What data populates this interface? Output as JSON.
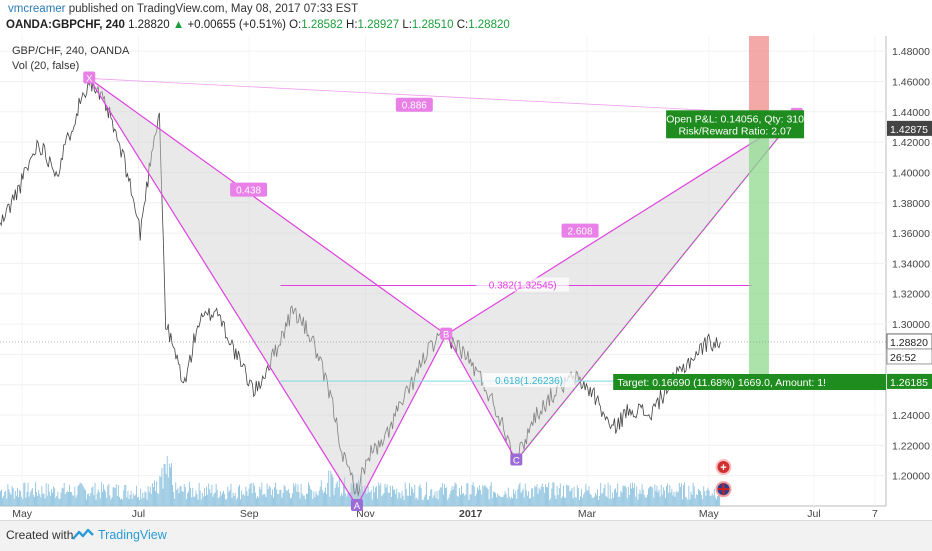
{
  "header": {
    "author": "vmcreamer",
    "published_text": "published on TradingView.com, May 08, 2017 07:33 EST",
    "symbol": "OANDA:GBPCHF, 240",
    "last": "1.28820",
    "change_arrow": "▲",
    "change": "+0.00655 (+0.51%)",
    "open_label": "O:",
    "open": "1.28582",
    "high_label": "H:",
    "high": "1.28927",
    "low_label": "L:",
    "low": "1.28510",
    "close_label": "C:",
    "close": "1.28820"
  },
  "legend": {
    "line1": "GBP/CHF, 240, OANDA",
    "line2": "Vol (20, false)"
  },
  "footer": {
    "created_with": "Created with",
    "brand": "TradingView"
  },
  "chart_data": {
    "type": "line",
    "title": "GBP/CHF, 240, OANDA",
    "subtitle": "Vol (20, false)",
    "ylim": [
      1.18,
      1.49
    ],
    "y_ticks": [
      "1.20000",
      "1.22000",
      "1.24000",
      "1.26000",
      "1.28000",
      "1.30000",
      "1.32000",
      "1.34000",
      "1.36000",
      "1.38000",
      "1.40000",
      "1.42000",
      "1.44000",
      "1.46000",
      "1.48000"
    ],
    "x_ticks": [
      "May",
      "Jul",
      "Sep",
      "Nov",
      "2017",
      "Mar",
      "May",
      "Jul",
      "7"
    ],
    "price_path": [
      {
        "t": 0,
        "y": 1.365
      },
      {
        "t": 3,
        "y": 1.39
      },
      {
        "t": 6,
        "y": 1.42
      },
      {
        "t": 9,
        "y": 1.4
      },
      {
        "t": 12,
        "y": 1.44
      },
      {
        "t": 14,
        "y": 1.462
      },
      {
        "t": 17,
        "y": 1.44
      },
      {
        "t": 20,
        "y": 1.4
      },
      {
        "t": 22,
        "y": 1.36
      },
      {
        "t": 24,
        "y": 1.42
      },
      {
        "t": 25,
        "y": 1.44
      },
      {
        "t": 26,
        "y": 1.3
      },
      {
        "t": 29,
        "y": 1.26
      },
      {
        "t": 31,
        "y": 1.3
      },
      {
        "t": 34,
        "y": 1.31
      },
      {
        "t": 37,
        "y": 1.28
      },
      {
        "t": 40,
        "y": 1.255
      },
      {
        "t": 43,
        "y": 1.28
      },
      {
        "t": 46,
        "y": 1.31
      },
      {
        "t": 49,
        "y": 1.29
      },
      {
        "t": 52,
        "y": 1.25
      },
      {
        "t": 54,
        "y": 1.21
      },
      {
        "t": 56,
        "y": 1.19
      },
      {
        "t": 58,
        "y": 1.215
      },
      {
        "t": 60,
        "y": 1.22
      },
      {
        "t": 62,
        "y": 1.24
      },
      {
        "t": 64,
        "y": 1.255
      },
      {
        "t": 67,
        "y": 1.282
      },
      {
        "t": 70,
        "y": 1.293
      },
      {
        "t": 73,
        "y": 1.28
      },
      {
        "t": 76,
        "y": 1.26
      },
      {
        "t": 79,
        "y": 1.233
      },
      {
        "t": 81,
        "y": 1.21
      },
      {
        "t": 84,
        "y": 1.24
      },
      {
        "t": 87,
        "y": 1.255
      },
      {
        "t": 90,
        "y": 1.265
      },
      {
        "t": 93,
        "y": 1.255
      },
      {
        "t": 96,
        "y": 1.23
      },
      {
        "t": 99,
        "y": 1.245
      },
      {
        "t": 102,
        "y": 1.24
      },
      {
        "t": 105,
        "y": 1.26
      },
      {
        "t": 108,
        "y": 1.275
      },
      {
        "t": 111,
        "y": 1.288
      },
      {
        "t": 113,
        "y": 1.2882
      }
    ],
    "pattern_points": [
      {
        "label": "X",
        "t": 14,
        "y": 1.462
      },
      {
        "label": "A",
        "t": 56,
        "y": 1.18
      },
      {
        "label": "B",
        "t": 70,
        "y": 1.293
      },
      {
        "label": "C",
        "t": 81,
        "y": 1.21
      },
      {
        "label": "D",
        "t": 125,
        "y": 1.438
      }
    ],
    "pattern_labels": [
      "0.886",
      "0.438",
      "2.608",
      "0.382(1.32545)",
      "0.618(1.26236)"
    ],
    "fib_lines": [
      {
        "label": "0.382(1.32545)",
        "y": 1.32545
      },
      {
        "label": "0.618(1.26236)",
        "y": 1.26236
      }
    ],
    "current_price": "1.28820",
    "countdown": "26:52",
    "entry_price": "1.42875",
    "target_price": "1.26185",
    "position": {
      "open_pnl": "Open P&L: 0.14056, Qty: 310",
      "risk_reward": "Risk/Reward Ratio: 2.07",
      "target": "Target: 0.16690 (11.68%) 1669.0, Amount: 1!"
    },
    "colors": {
      "pattern": "#e040e0",
      "pattern_fill": "#cfcfcf",
      "stop_zone": "#f08c8c",
      "profit_zone": "#8fd98f",
      "price": "#222222",
      "volume": "#90c4e0",
      "target_box": "#1e8c1e",
      "fib_618": "#7fd7e6"
    }
  }
}
